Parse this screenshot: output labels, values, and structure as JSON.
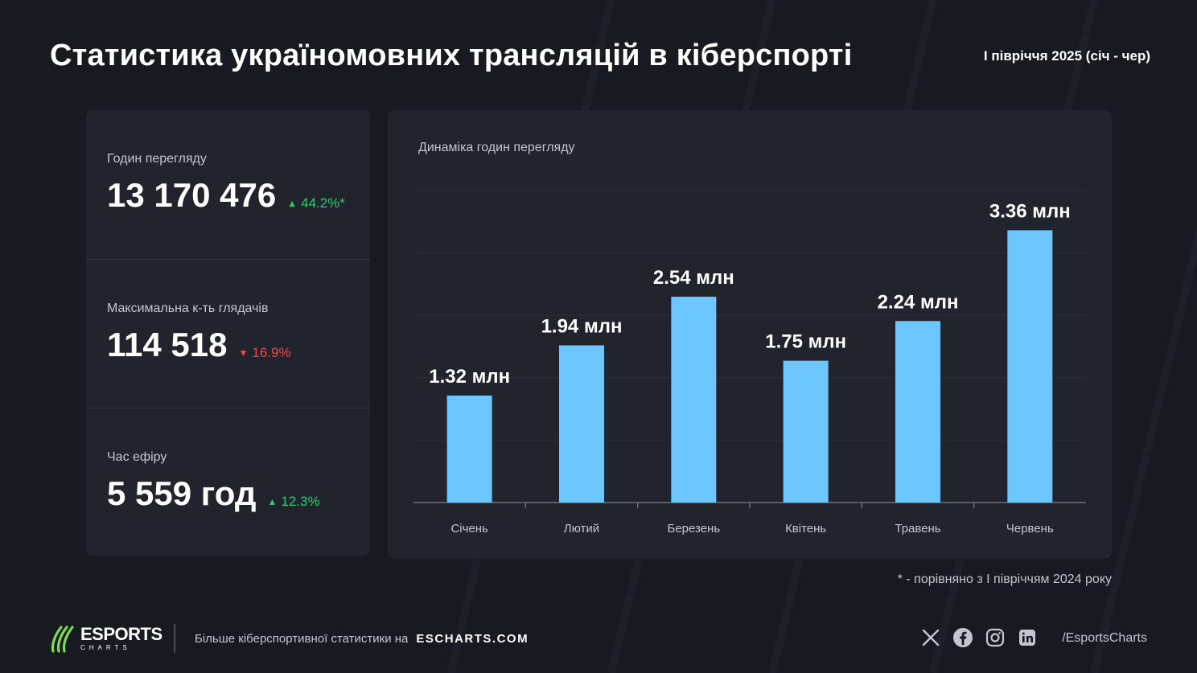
{
  "header": {
    "title": "Статистика україномовних трансляцій в кіберспорті",
    "period": "I півріччя 2025 (січ - чер)"
  },
  "stats": [
    {
      "label": "Годин перегляду",
      "value": "13 170 476",
      "change": "44.2%*",
      "direction": "up"
    },
    {
      "label": "Максимальна к-ть глядачів",
      "value": "114 518",
      "change": "16.9%",
      "direction": "down"
    },
    {
      "label": "Час ефіру",
      "value": "5 559 год",
      "change": "12.3%",
      "direction": "up"
    }
  ],
  "chart_data": {
    "type": "bar",
    "title": "Динаміка годин перегляду",
    "categories": [
      "Січень",
      "Лютий",
      "Березень",
      "Квітень",
      "Травень",
      "Червень"
    ],
    "values": [
      1.32,
      1.94,
      2.54,
      1.75,
      2.24,
      3.36
    ],
    "value_labels": [
      "1.32 млн",
      "1.94 млн",
      "2.54 млн",
      "1.75 млн",
      "2.24 млн",
      "3.36 млн"
    ],
    "unit": "млн",
    "xlabel": "",
    "ylabel": "",
    "ylim": [
      0,
      3.85
    ],
    "grid": true,
    "bar_color": "#6ec6ff"
  },
  "footnote": "* - порівняно з I півріччям 2024 року",
  "footer": {
    "logo_main": "ESPORTS",
    "logo_sub": "CHARTS",
    "text": "Більше кіберспортивної статистики на",
    "link": "ESCHARTS.COM",
    "handle": "/EsportsCharts",
    "social_icons": [
      "x-icon",
      "facebook-icon",
      "instagram-icon",
      "linkedin-icon"
    ]
  },
  "colors": {
    "background": "#181a22",
    "panel": "#22242d",
    "up": "#2ecc71",
    "down": "#f2464b",
    "accent_logo": "#7ed957"
  }
}
